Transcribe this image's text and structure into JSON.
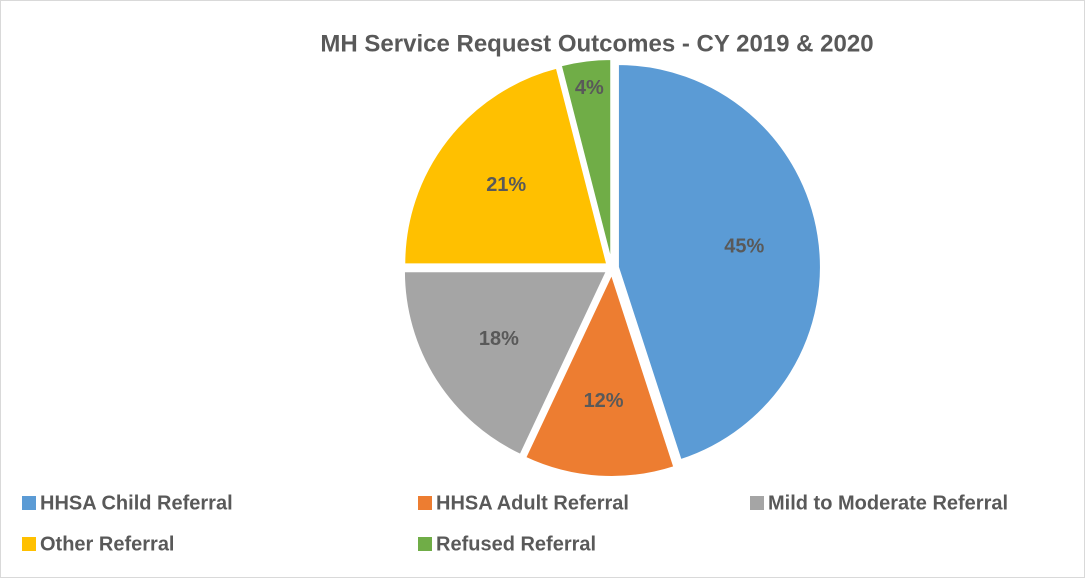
{
  "chart_data": {
    "type": "pie",
    "title": "MH Service Request Outcomes - CY 2019 & 2020",
    "categories": [
      "HHSA Child Referral",
      "HHSA Adult Referral",
      "Mild to Moderate Referral",
      "Other Referral",
      "Refused Referral"
    ],
    "values": [
      45,
      12,
      18,
      21,
      4
    ],
    "value_labels": [
      "45%",
      "12%",
      "18%",
      "21%",
      "4%"
    ],
    "colors": [
      "#5b9bd5",
      "#ed7d31",
      "#a5a5a5",
      "#ffc000",
      "#70ad47"
    ]
  }
}
